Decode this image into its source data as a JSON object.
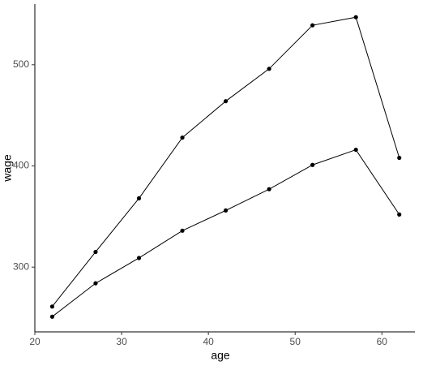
{
  "chart_data": {
    "type": "line",
    "x_label": "age",
    "y_label": "wage",
    "x": [
      22,
      27,
      32,
      37,
      42,
      47,
      52,
      57,
      62
    ],
    "series": [
      {
        "color": "#000000",
        "values": [
          261,
          315,
          368,
          428,
          464,
          496,
          539,
          547,
          408
        ]
      },
      {
        "color": "#000000",
        "values": [
          251,
          284,
          309,
          336,
          356,
          377,
          401,
          416,
          352
        ]
      }
    ],
    "xlim": [
      20,
      63.8
    ],
    "xticks": [
      20,
      30,
      40,
      50,
      60
    ],
    "ylim": [
      236,
      560
    ],
    "yticks": [
      300,
      400,
      500
    ],
    "grid": false
  }
}
